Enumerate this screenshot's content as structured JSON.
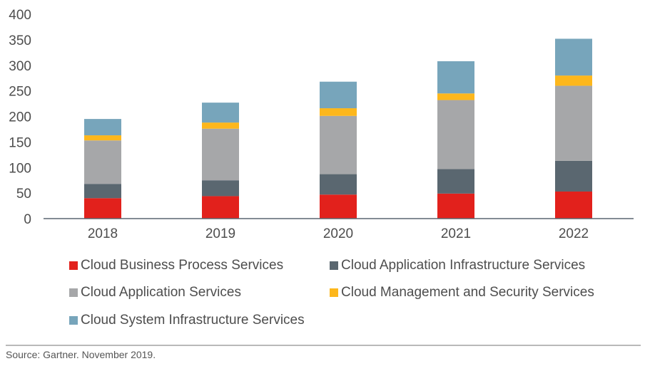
{
  "chart_data": {
    "type": "bar",
    "stacked": true,
    "title": "",
    "xlabel": "",
    "ylabel": "",
    "categories": [
      "2018",
      "2019",
      "2020",
      "2021",
      "2022"
    ],
    "ylim": [
      0,
      400
    ],
    "yticks": [
      0,
      50,
      100,
      150,
      200,
      250,
      300,
      350,
      400
    ],
    "grid": false,
    "legend_position": "bottom",
    "series": [
      {
        "name": "Cloud Business Process Services",
        "color": "#e2211c",
        "values": [
          40,
          44,
          47,
          49,
          53
        ]
      },
      {
        "name": "Cloud Application Infrastructure Services",
        "color": "#5a6770",
        "values": [
          28,
          31,
          40,
          48,
          60
        ]
      },
      {
        "name": "Cloud Application Services",
        "color": "#a6a7a9",
        "values": [
          85,
          101,
          114,
          135,
          147
        ]
      },
      {
        "name": "Cloud Management and Security Services",
        "color": "#fdb71c",
        "values": [
          10,
          12,
          15,
          13,
          20
        ]
      },
      {
        "name": "Cloud System Infrastructure Services",
        "color": "#77a5bb",
        "values": [
          32,
          39,
          52,
          63,
          72
        ]
      }
    ]
  },
  "legend": {
    "items": [
      {
        "label": "Cloud Business Process Services",
        "color": "#e2211c"
      },
      {
        "label": "Cloud Application Infrastructure Services",
        "color": "#5a6770"
      },
      {
        "label": "Cloud Application Services",
        "color": "#a6a7a9"
      },
      {
        "label": "Cloud Management and Security Services",
        "color": "#fdb71c"
      },
      {
        "label": "Cloud System Infrastructure Services",
        "color": "#77a5bb"
      }
    ]
  },
  "source": "Source: Gartner. November 2019."
}
